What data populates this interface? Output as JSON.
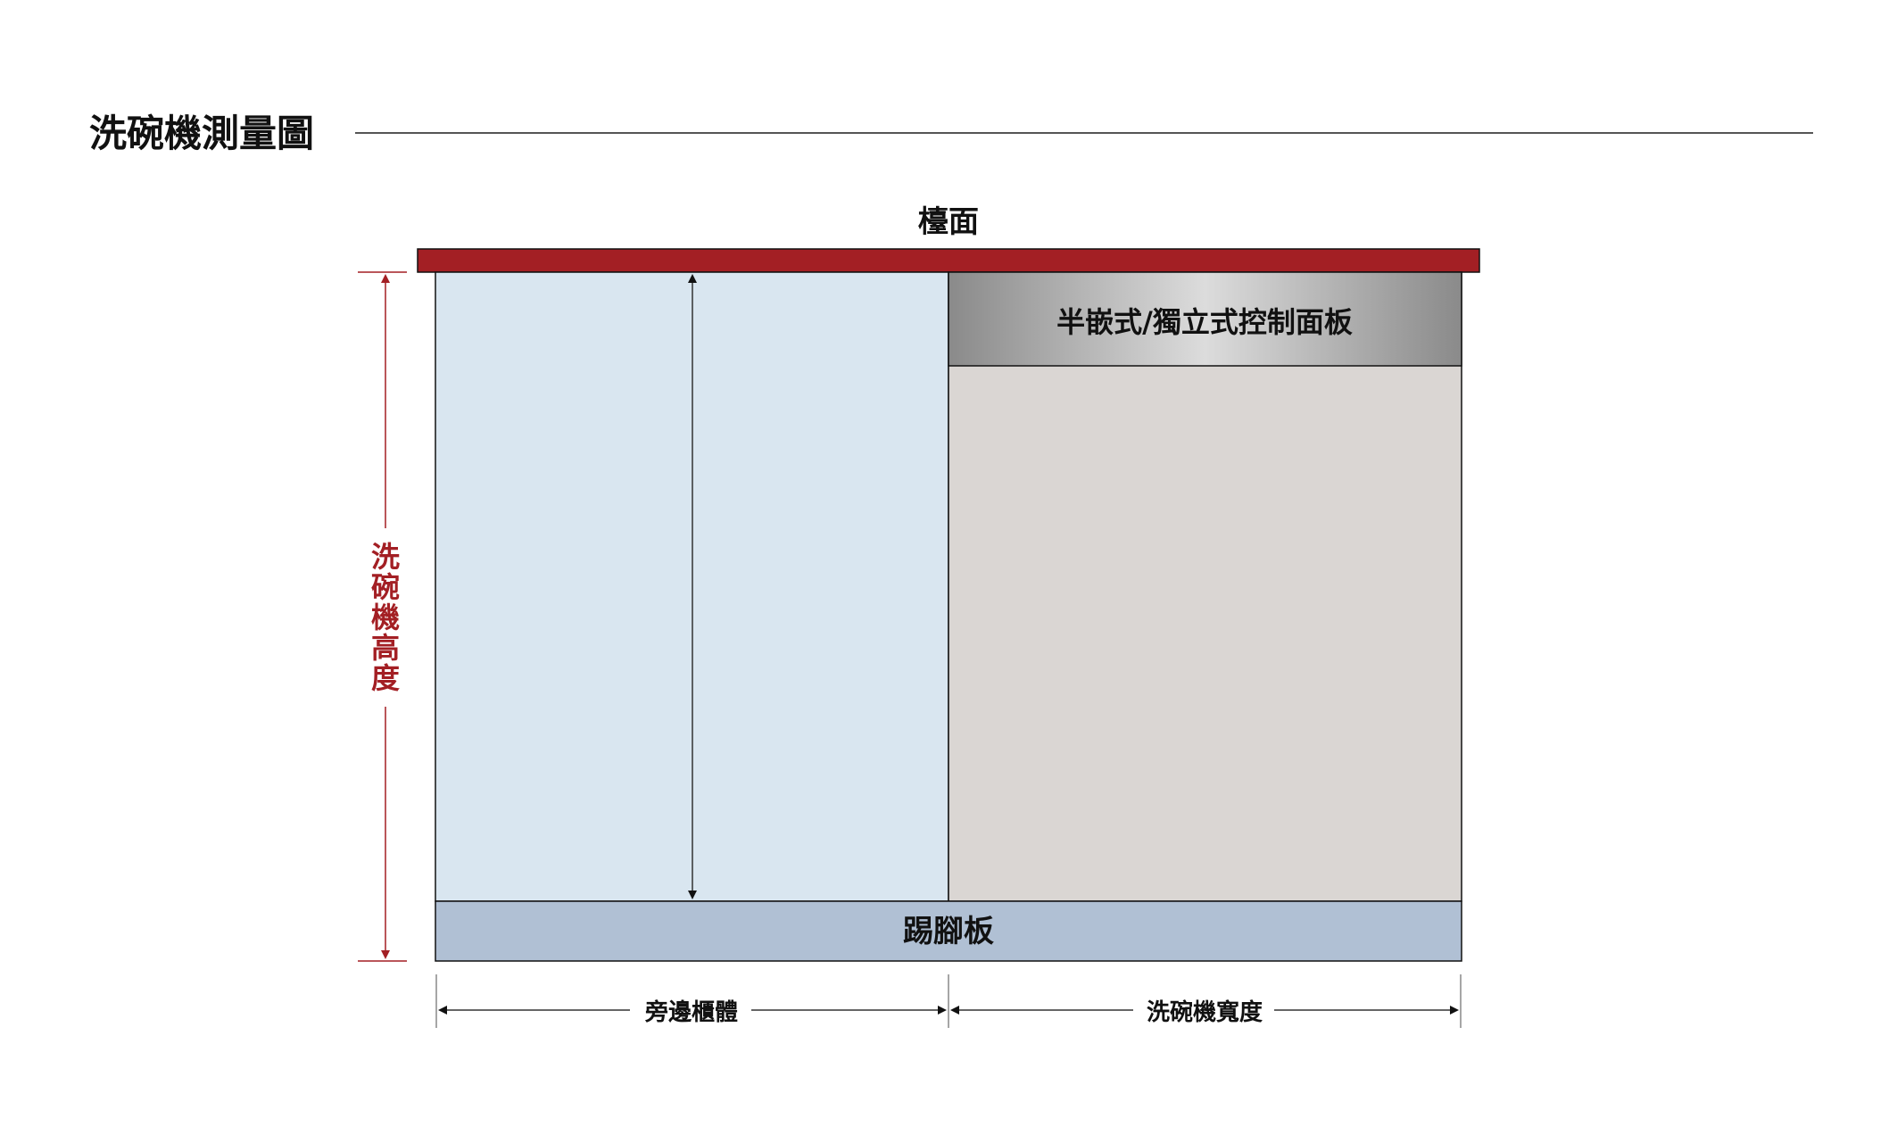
{
  "title": "洗碗機測量圖",
  "labels": {
    "countertop": "檯面",
    "control_panel": "半嵌式/獨立式控制面板",
    "kickboard": "踢腳板",
    "dishwasher_height": "洗碗機高度",
    "side_cabinet": "旁邊櫃體",
    "dishwasher_width": "洗碗機寬度"
  },
  "colors": {
    "countertop": "#a31f24",
    "side_cabinet_fill": "#d9e6f0",
    "dishwasher_fill": "#dad6d3",
    "kickboard_fill": "#b0c0d4",
    "control_panel_light": "#dcdcdc",
    "control_panel_dark": "#8a8a8a",
    "height_dimension": "#a31f24",
    "outline": "#111111"
  }
}
